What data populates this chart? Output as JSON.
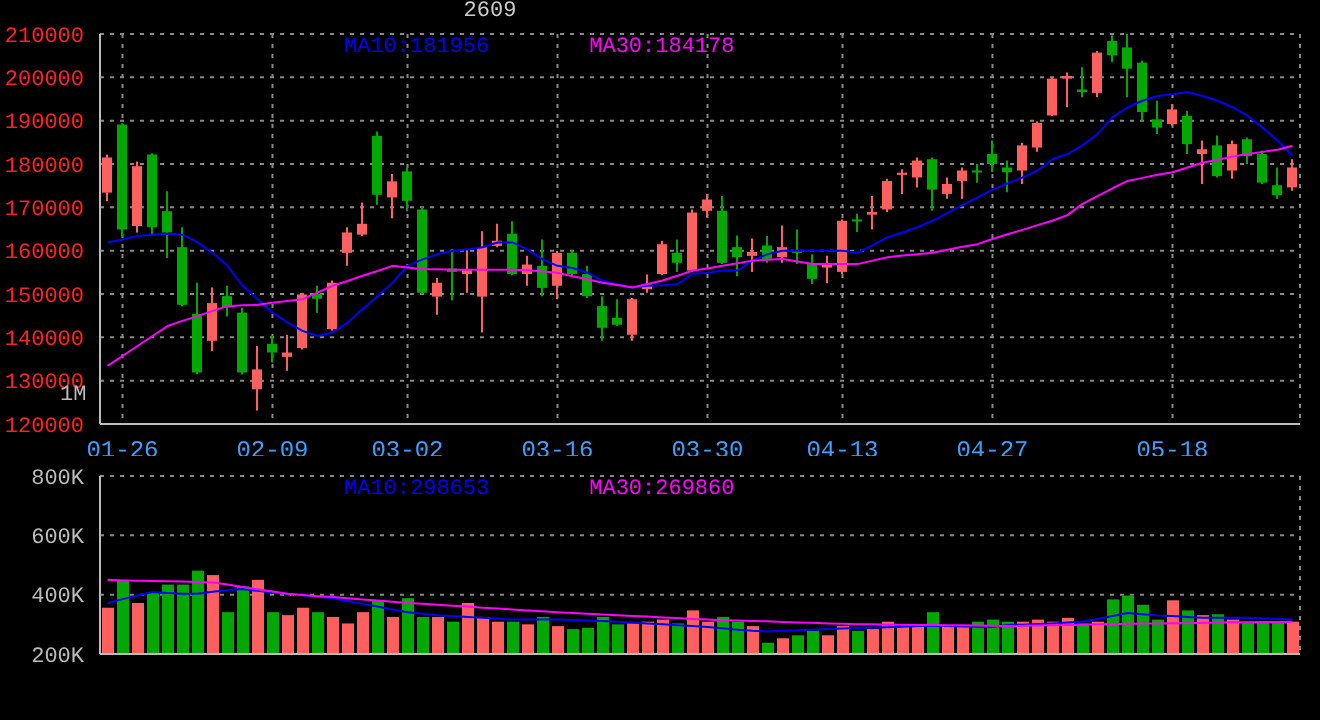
{
  "chart_data": [
    {
      "type": "candlestick",
      "title": "2609",
      "annotations": [
        "1M"
      ],
      "legend": "top",
      "grid": true,
      "categories": [
        null,
        "01-26",
        null,
        null,
        null,
        null,
        null,
        null,
        null,
        null,
        null,
        "02-09",
        null,
        null,
        null,
        null,
        null,
        null,
        null,
        null,
        "03-02",
        null,
        null,
        null,
        null,
        null,
        null,
        null,
        null,
        null,
        "03-16",
        null,
        null,
        null,
        null,
        null,
        null,
        null,
        null,
        null,
        "03-30",
        null,
        null,
        null,
        null,
        null,
        null,
        null,
        null,
        "04-13",
        null,
        null,
        null,
        null,
        null,
        null,
        null,
        null,
        null,
        "04-27",
        null,
        null,
        null,
        null,
        null,
        null,
        null,
        null,
        null,
        null,
        null,
        "05-18",
        null,
        null,
        null,
        null,
        null,
        null,
        null,
        null
      ],
      "ohlc": [
        [
          173400,
          182200,
          171400,
          181500
        ],
        [
          189100,
          189400,
          163100,
          164900
        ],
        [
          165700,
          180600,
          164200,
          179500
        ],
        [
          182200,
          182500,
          163400,
          165400
        ],
        [
          169100,
          173700,
          158300,
          164200
        ],
        [
          160800,
          165400,
          147200,
          147500
        ],
        [
          145400,
          152600,
          131500,
          131900
        ],
        [
          139200,
          151500,
          136800,
          147900
        ],
        [
          149500,
          151900,
          144800,
          146900
        ],
        [
          145700,
          146800,
          131400,
          131900
        ],
        [
          128000,
          138000,
          123100,
          132600
        ],
        [
          138500,
          140300,
          134200,
          136500
        ],
        [
          135500,
          140600,
          132300,
          136500
        ],
        [
          137500,
          150300,
          137200,
          149900
        ],
        [
          150000,
          151900,
          145700,
          148900
        ],
        [
          141900,
          153100,
          141500,
          152600
        ],
        [
          159500,
          165400,
          156500,
          164200
        ],
        [
          163700,
          171100,
          163400,
          166200
        ],
        [
          186500,
          187500,
          170600,
          172900
        ],
        [
          172300,
          177700,
          167500,
          176000
        ],
        [
          178300,
          179200,
          169100,
          171500
        ],
        [
          169500,
          170300,
          150000,
          150300
        ],
        [
          149400,
          153700,
          145200,
          152600
        ],
        [
          155900,
          160300,
          148500,
          155100
        ],
        [
          154600,
          160300,
          150300,
          155700
        ],
        [
          149400,
          164500,
          141100,
          160800
        ],
        [
          161100,
          166200,
          160800,
          162300
        ],
        [
          163900,
          166800,
          154300,
          154600
        ],
        [
          154600,
          158800,
          151900,
          156800
        ],
        [
          156500,
          162600,
          149500,
          151400
        ],
        [
          151900,
          159900,
          148800,
          159500
        ],
        [
          159500,
          160200,
          154200,
          154600
        ],
        [
          154600,
          156500,
          149100,
          149500
        ],
        [
          147200,
          149500,
          139200,
          142200
        ],
        [
          144500,
          148800,
          142600,
          142900
        ],
        [
          140600,
          149100,
          139200,
          148800
        ],
        [
          151100,
          154500,
          150300,
          152200
        ],
        [
          154600,
          162300,
          154300,
          161500
        ],
        [
          159500,
          162600,
          155100,
          157200
        ],
        [
          155400,
          169500,
          155100,
          168800
        ],
        [
          169200,
          173100,
          167700,
          171800
        ],
        [
          169200,
          172600,
          156900,
          157200
        ],
        [
          160800,
          163500,
          154100,
          158500
        ],
        [
          158800,
          162800,
          155100,
          159700
        ],
        [
          161200,
          163400,
          157200,
          158100
        ],
        [
          158500,
          165800,
          157200,
          160800
        ],
        [
          160000,
          164900,
          156900,
          159500
        ],
        [
          156900,
          159200,
          152300,
          153500
        ],
        [
          156100,
          158800,
          152500,
          156900
        ],
        [
          155100,
          167200,
          154600,
          166900
        ],
        [
          167200,
          168500,
          164300,
          166800
        ],
        [
          168300,
          172600,
          164900,
          168900
        ],
        [
          169500,
          176600,
          168900,
          176100
        ],
        [
          177500,
          178800,
          173100,
          178000
        ],
        [
          176900,
          181500,
          174600,
          180800
        ],
        [
          181100,
          181500,
          169200,
          174100
        ],
        [
          173100,
          176900,
          172000,
          175400
        ],
        [
          176100,
          179200,
          172000,
          178500
        ],
        [
          178500,
          180000,
          175700,
          178100
        ],
        [
          182300,
          185400,
          178100,
          180000
        ],
        [
          179200,
          180800,
          173500,
          178100
        ],
        [
          178500,
          184900,
          175400,
          184300
        ],
        [
          183800,
          189800,
          182800,
          189500
        ],
        [
          191200,
          200000,
          191100,
          199700
        ],
        [
          199700,
          201100,
          193100,
          200300
        ],
        [
          197200,
          202300,
          195400,
          196600
        ],
        [
          196400,
          206100,
          195400,
          205700
        ],
        [
          208400,
          209700,
          203500,
          205100
        ],
        [
          206900,
          210000,
          195400,
          202000
        ],
        [
          203400,
          203800,
          190000,
          192000
        ],
        [
          190300,
          194600,
          186900,
          188400
        ],
        [
          189200,
          193800,
          188900,
          192600
        ],
        [
          191100,
          192300,
          182300,
          184600
        ],
        [
          182300,
          185400,
          175400,
          183400
        ],
        [
          184300,
          186600,
          176900,
          177200
        ],
        [
          178500,
          185400,
          176600,
          184600
        ],
        [
          185700,
          186100,
          180000,
          181800
        ],
        [
          182300,
          183100,
          175400,
          175700
        ],
        [
          175100,
          179200,
          172000,
          172800
        ],
        [
          174600,
          181100,
          173800,
          179200
        ]
      ],
      "colors": [
        "#ff5f5f",
        "#00a800",
        "#ff5f5f",
        "#00a800",
        "#00a800",
        "#00a800",
        "#00a800",
        "#ff5f5f",
        "#00a800",
        "#00a800",
        "#ff5f5f",
        "#00a800",
        "#ff5f5f",
        "#ff5f5f",
        "#00a800",
        "#ff5f5f",
        "#ff5f5f",
        "#ff5f5f",
        "#00a800",
        "#ff5f5f",
        "#00a800",
        "#00a800",
        "#ff5f5f",
        "#00a800",
        "#ff5f5f",
        "#ff5f5f",
        "#ff5f5f",
        "#00a800",
        "#ff5f5f",
        "#00a800",
        "#ff5f5f",
        "#00a800",
        "#00a800",
        "#00a800",
        "#00a800",
        "#ff5f5f",
        "#ff5f5f",
        "#ff5f5f",
        "#00a800",
        "#ff5f5f",
        "#ff5f5f",
        "#00a800",
        "#00a800",
        "#ff5f5f",
        "#00a800",
        "#ff5f5f",
        "#00a800",
        "#00a800",
        "#ff5f5f",
        "#ff5f5f",
        "#00a800",
        "#ff5f5f",
        "#ff5f5f",
        "#ff5f5f",
        "#ff5f5f",
        "#00a800",
        "#ff5f5f",
        "#ff5f5f",
        "#00a800",
        "#00a800",
        "#00a800",
        "#ff5f5f",
        "#ff5f5f",
        "#ff5f5f",
        "#ff5f5f",
        "#00a800",
        "#ff5f5f",
        "#00a800",
        "#00a800",
        "#00a800",
        "#00a800",
        "#ff5f5f",
        "#00a800",
        "#ff5f5f",
        "#00a800",
        "#ff5f5f",
        "#00a800",
        "#00a800",
        "#00a800",
        "#ff5f5f"
      ],
      "series": [
        {
          "type": "line",
          "name": "MA10:181956",
          "color": "#0000ff",
          "values": [
            161900,
            162600,
            163400,
            163700,
            163900,
            163700,
            161900,
            159500,
            156500,
            151900,
            148800,
            145700,
            143400,
            141500,
            140300,
            141100,
            143400,
            146500,
            149500,
            152600,
            156500,
            158000,
            159200,
            159900,
            160300,
            160800,
            161900,
            161900,
            160300,
            158000,
            156500,
            156000,
            154900,
            153100,
            152200,
            151500,
            151900,
            152000,
            152300,
            154600,
            154900,
            155400,
            155400,
            157700,
            159200,
            160000,
            160000,
            160000,
            160000,
            160000,
            159500,
            161200,
            163100,
            164200,
            165400,
            166900,
            168700,
            170500,
            172300,
            174100,
            175500,
            176900,
            178500,
            181100,
            182300,
            184300,
            186900,
            190800,
            193100,
            194600,
            195700,
            196100,
            196600,
            195700,
            194600,
            193100,
            191100,
            188400,
            185400,
            181900
          ]
        },
        {
          "type": "line",
          "name": "MA30:184178",
          "color": "#ff00ff",
          "values": [
            133400,
            135700,
            138000,
            140300,
            142600,
            143800,
            144900,
            146100,
            147200,
            147400,
            147500,
            148000,
            148400,
            148800,
            150300,
            151900,
            153000,
            154200,
            155300,
            156500,
            156100,
            155700,
            155700,
            155600,
            155600,
            155600,
            155600,
            155600,
            155500,
            155200,
            154900,
            154100,
            153400,
            152600,
            152100,
            151500,
            152300,
            153100,
            154200,
            155400,
            155900,
            156500,
            157100,
            157700,
            157900,
            158100,
            157500,
            156900,
            156900,
            156900,
            156900,
            157700,
            158500,
            158900,
            159200,
            159500,
            160200,
            160900,
            161500,
            162700,
            163800,
            164800,
            165900,
            166900,
            168200,
            170800,
            172600,
            174400,
            176100,
            176800,
            177500,
            178100,
            179200,
            180300,
            181000,
            181700,
            182300,
            182800,
            183300,
            184200
          ]
        }
      ],
      "ylim": [
        120000,
        210000
      ],
      "yticks": [
        120000,
        130000,
        140000,
        150000,
        160000,
        170000,
        180000,
        190000,
        200000,
        210000
      ]
    },
    {
      "type": "bar",
      "legend": "top",
      "grid": true,
      "tick_labels": "y",
      "categories": [
        null,
        null,
        null,
        null,
        null,
        null,
        null,
        null,
        null,
        null,
        null,
        null,
        null,
        null,
        null,
        null,
        null,
        null,
        null,
        null,
        null,
        null,
        null,
        null,
        null,
        null,
        null,
        null,
        null,
        null,
        null,
        null,
        null,
        null,
        null,
        null,
        null,
        null,
        null,
        null,
        null,
        null,
        null,
        null,
        null,
        null,
        null,
        null,
        null,
        null,
        null,
        null,
        null,
        null,
        null,
        null,
        null,
        null,
        null,
        null,
        null,
        null,
        null,
        null,
        null,
        null,
        null,
        null,
        null,
        null,
        null,
        null,
        null,
        null,
        null,
        null,
        null,
        null,
        null,
        null
      ],
      "series": [
        {
          "type": "bar",
          "values": [
            356000,
            450000,
            372000,
            409000,
            434000,
            434000,
            481000,
            466000,
            341000,
            428000,
            450000,
            341000,
            331000,
            356000,
            341000,
            325000,
            303000,
            341000,
            381000,
            325000,
            388000,
            325000,
            325000,
            309000,
            372000,
            325000,
            309000,
            309000,
            300000,
            325000,
            294000,
            284000,
            288000,
            325000,
            300000,
            303000,
            309000,
            316000,
            303000,
            347000,
            309000,
            325000,
            309000,
            294000,
            238000,
            253000,
            263000,
            278000,
            263000,
            294000,
            278000,
            284000,
            309000,
            294000,
            294000,
            341000,
            294000,
            294000,
            309000,
            316000,
            309000,
            309000,
            316000,
            309000,
            322000,
            303000,
            309000,
            384000,
            397000,
            366000,
            316000,
            381000,
            347000,
            331000,
            334000,
            316000,
            309000,
            309000,
            309000,
            309000
          ],
          "colors": [
            "#ff5f5f",
            "#00a800",
            "#ff5f5f",
            "#00a800",
            "#00a800",
            "#00a800",
            "#00a800",
            "#ff5f5f",
            "#00a800",
            "#00a800",
            "#ff5f5f",
            "#00a800",
            "#ff5f5f",
            "#ff5f5f",
            "#00a800",
            "#ff5f5f",
            "#ff5f5f",
            "#ff5f5f",
            "#00a800",
            "#ff5f5f",
            "#00a800",
            "#00a800",
            "#ff5f5f",
            "#00a800",
            "#ff5f5f",
            "#ff5f5f",
            "#ff5f5f",
            "#00a800",
            "#ff5f5f",
            "#00a800",
            "#ff5f5f",
            "#00a800",
            "#00a800",
            "#00a800",
            "#00a800",
            "#ff5f5f",
            "#ff5f5f",
            "#ff5f5f",
            "#00a800",
            "#ff5f5f",
            "#ff5f5f",
            "#00a800",
            "#00a800",
            "#ff5f5f",
            "#00a800",
            "#ff5f5f",
            "#00a800",
            "#00a800",
            "#ff5f5f",
            "#ff5f5f",
            "#00a800",
            "#ff5f5f",
            "#ff5f5f",
            "#ff5f5f",
            "#ff5f5f",
            "#00a800",
            "#ff5f5f",
            "#ff5f5f",
            "#00a800",
            "#00a800",
            "#00a800",
            "#ff5f5f",
            "#ff5f5f",
            "#ff5f5f",
            "#ff5f5f",
            "#00a800",
            "#ff5f5f",
            "#00a800",
            "#00a800",
            "#00a800",
            "#00a800",
            "#ff5f5f",
            "#00a800",
            "#ff5f5f",
            "#00a800",
            "#ff5f5f",
            "#00a800",
            "#00a800",
            "#00a800",
            "#ff5f5f"
          ]
        },
        {
          "type": "line",
          "name": "MA10:298653",
          "color": "#0000ff",
          "values": [
            372000,
            385000,
            397000,
            409000,
            406000,
            403000,
            403000,
            410000,
            415000,
            419000,
            413000,
            407000,
            403000,
            398000,
            393000,
            388000,
            378000,
            369000,
            360000,
            350000,
            341000,
            336000,
            331000,
            328000,
            325000,
            322000,
            319000,
            316000,
            316000,
            316000,
            316000,
            315000,
            313000,
            311000,
            309000,
            306000,
            303000,
            300000,
            297000,
            294000,
            291000,
            287000,
            282000,
            278000,
            276000,
            278000,
            280000,
            282000,
            284000,
            286000,
            288000,
            289000,
            290000,
            292000,
            294000,
            294000,
            294000,
            293000,
            292000,
            291000,
            298000,
            299000,
            301000,
            303000,
            306000,
            309000,
            318000,
            328000,
            338000,
            334000,
            330000,
            328000,
            325000,
            322000,
            322000,
            322000,
            322000,
            320000,
            318000,
            316000
          ]
        },
        {
          "type": "line",
          "name": "MA30:269860",
          "color": "#ff00ff",
          "values": [
            450000,
            448000,
            447000,
            446000,
            445000,
            444000,
            443000,
            441000,
            434000,
            426000,
            418000,
            411000,
            403000,
            399000,
            395000,
            392000,
            388000,
            384000,
            380000,
            376000,
            372000,
            369000,
            366000,
            363000,
            360000,
            356000,
            353000,
            350000,
            347000,
            344000,
            341000,
            338000,
            336000,
            333000,
            331000,
            328000,
            326000,
            323000,
            321000,
            318000,
            316000,
            314000,
            313000,
            311000,
            310000,
            308000,
            306000,
            305000,
            303000,
            302000,
            300000,
            300000,
            299000,
            299000,
            298000,
            298000,
            297000,
            297000,
            296000,
            295000,
            294000,
            295000,
            296000,
            297000,
            298000,
            299000,
            300000,
            301000,
            302000,
            303000,
            303000,
            304000,
            304000,
            305000,
            306000,
            307000,
            307000,
            308000,
            308000,
            309000
          ]
        }
      ],
      "ylim": [
        200000,
        800000
      ],
      "yticks": [
        {
          "value": 200000,
          "label": "200K"
        },
        {
          "value": 400000,
          "label": "400K"
        },
        {
          "value": 600000,
          "label": "600K"
        },
        {
          "value": 800000,
          "label": "800K"
        }
      ]
    }
  ]
}
